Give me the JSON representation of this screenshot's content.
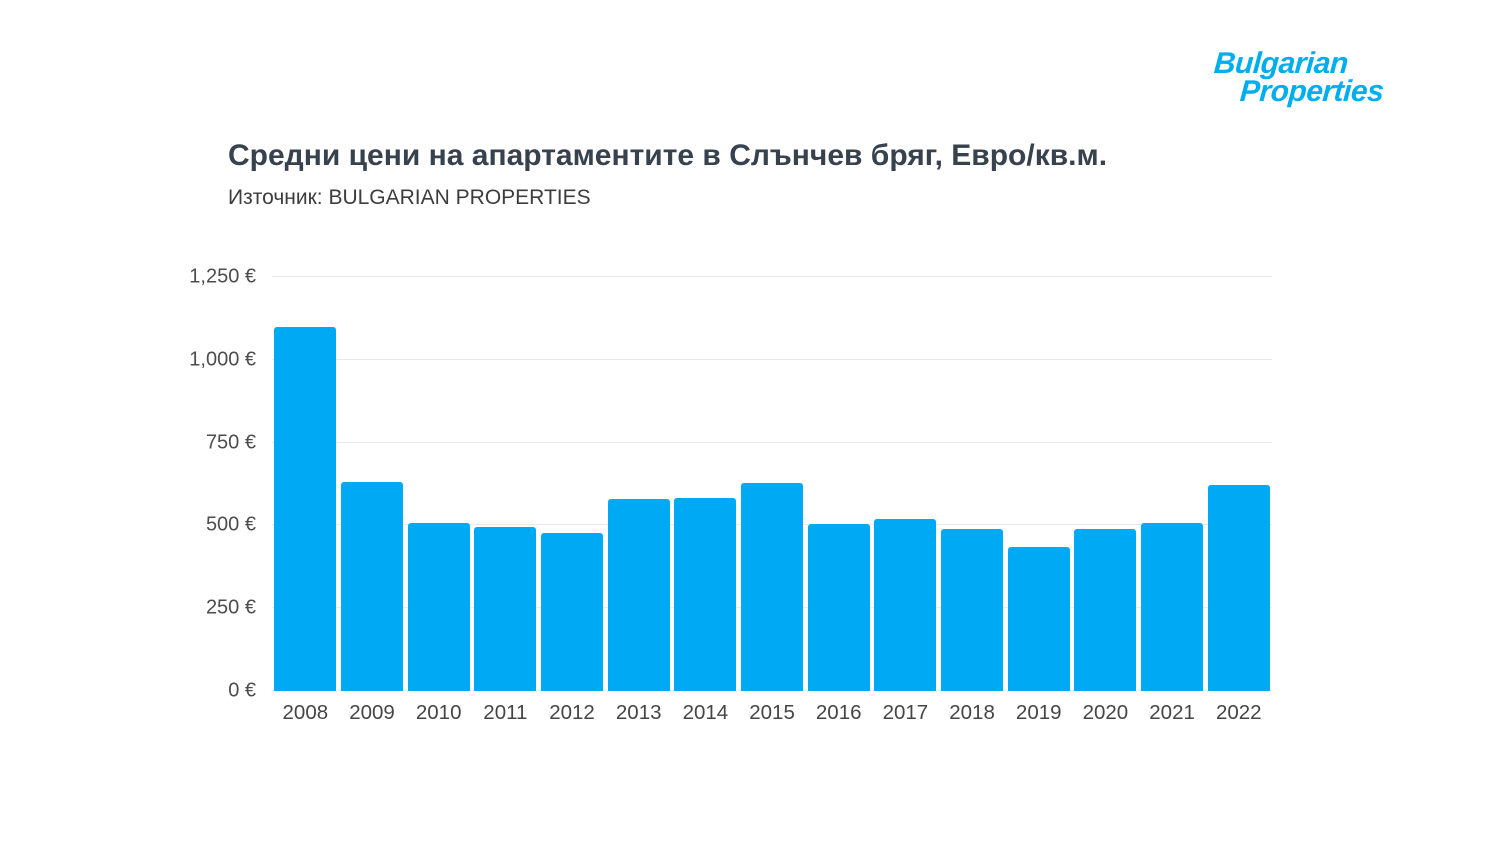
{
  "logo": {
    "line1": "Bulgarian",
    "line2": "Properties"
  },
  "header": {
    "title": "Средни цени на апартаментите в Слънчев бряг, Евро/кв.м.",
    "subtitle": "Източник: BULGARIAN PROPERTIES"
  },
  "colors": {
    "bar": "#00a9f4",
    "logo": "#00aeef",
    "title": "#37424e",
    "gridline": "#e9e9e9",
    "tick_text": "#4d4d4d"
  },
  "chart_data": {
    "type": "bar",
    "title": "Средни цени на апартаментите в Слънчев бряг, Евро/кв.м.",
    "subtitle": "Източник: BULGARIAN PROPERTIES",
    "categories": [
      "2008",
      "2009",
      "2010",
      "2011",
      "2012",
      "2013",
      "2014",
      "2015",
      "2016",
      "2017",
      "2018",
      "2019",
      "2020",
      "2021",
      "2022"
    ],
    "values": [
      1100,
      630,
      508,
      495,
      478,
      580,
      582,
      628,
      505,
      520,
      490,
      435,
      488,
      507,
      622
    ],
    "xlabel": "",
    "ylabel": "",
    "ylim": [
      0,
      1250
    ],
    "yticks": [
      {
        "value": 0,
        "label": "0 €"
      },
      {
        "value": 250,
        "label": "250 €"
      },
      {
        "value": 500,
        "label": "500 €"
      },
      {
        "value": 750,
        "label": "750 €"
      },
      {
        "value": 1000,
        "label": "1,000 €"
      },
      {
        "value": 1250,
        "label": "1,250 €"
      }
    ],
    "grid": true,
    "legend_position": "none"
  }
}
